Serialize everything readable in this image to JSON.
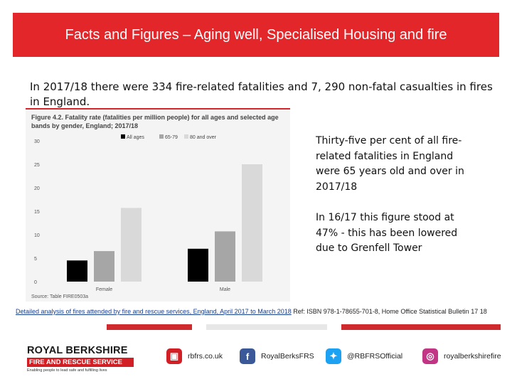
{
  "slide": {
    "title": "Facts and Figures – Aging well, Specialised Housing and fire",
    "intro": "In 2017/18 there were 334 fire-related fatalities and 7, 290 non-fatal casualties in fires in England.",
    "side_text_1": "Thirty-five per cent of all fire-related fatalities in England were 65 years old and over in 2017/18",
    "side_text_2": "In 16/17 this figure stood at 47% - this has been lowered due to Grenfell Tower",
    "reference_link": "Detailed analysis of fires attended by fire and rescue services, England, April 2017 to March 2018",
    "reference_rest": " Ref: ISBN 978-1-78655-701-8, Home Office Statistical Bulletin 17 18"
  },
  "figure": {
    "title": "Figure 4.2. Fatality rate (fatalities per million people) for all ages and selected age bands by gender, England; 2017/18",
    "source": "Source: Table FIRE0503a"
  },
  "chart_data": {
    "type": "bar",
    "categories": [
      "Female",
      "Male"
    ],
    "series": [
      {
        "name": "All ages",
        "values": [
          4.5,
          7
        ],
        "color": "#000000"
      },
      {
        "name": "65-79",
        "values": [
          6.5,
          10.7
        ],
        "color": "#a6a6a6"
      },
      {
        "name": "80 and over",
        "values": [
          15.7,
          25
        ],
        "color": "#d9d9d9"
      }
    ],
    "ylim": [
      0,
      30
    ],
    "yticks": [
      "0",
      "5",
      "10",
      "15",
      "20",
      "25",
      "30"
    ],
    "legend_position": "top"
  },
  "footer": {
    "logo_line1": "ROYAL BERKSHIRE",
    "logo_line2": "FIRE AND RESCUE SERVICE",
    "logo_tagline": "Enabling people to lead safe and fulfilling lives",
    "social": [
      {
        "icon": "website-icon",
        "glyph": "▣",
        "label": "rbfrs.co.uk",
        "color": "#d21f26"
      },
      {
        "icon": "facebook-icon",
        "glyph": "f",
        "label": "RoyalBerksFRS",
        "color": "#3b5998"
      },
      {
        "icon": "twitter-icon",
        "glyph": "✦",
        "label": "@RBFRSOfficial",
        "color": "#1da1f2"
      },
      {
        "icon": "instagram-icon",
        "glyph": "◎",
        "label": "royalberkshirefire",
        "color": "#c13584"
      }
    ]
  }
}
